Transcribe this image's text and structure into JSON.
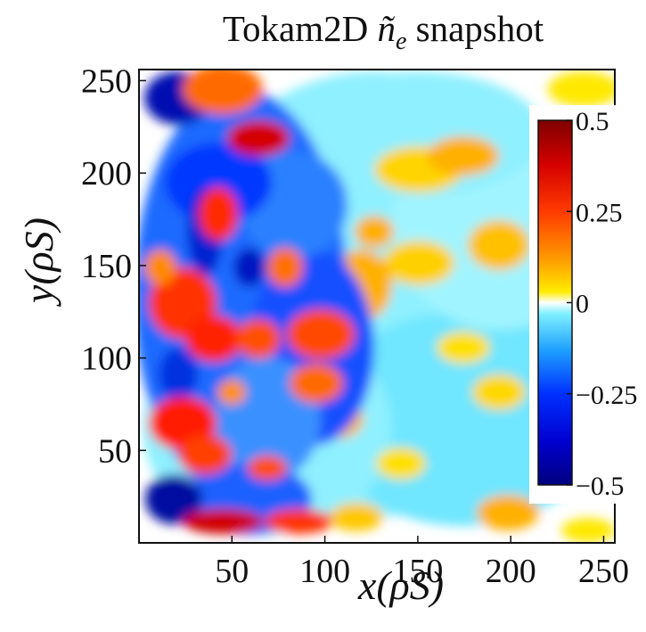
{
  "chart_data": {
    "type": "heatmap",
    "title": "Tokam2D ñe snapshot",
    "title_parts": {
      "prefix": "Tokam2D ",
      "symbol": "ñ",
      "subscript": "e",
      "suffix": " snapshot"
    },
    "xlabel": "x(ρS)",
    "ylabel": "y(ρS)",
    "xlim": [
      0,
      256
    ],
    "ylim": [
      0,
      256
    ],
    "x_ticks": [
      50,
      100,
      150,
      200,
      250
    ],
    "y_ticks": [
      50,
      100,
      150,
      200,
      250
    ],
    "colorbar": {
      "range": [
        -0.5,
        0.5
      ],
      "ticks": [
        0.5,
        0.25,
        0,
        -0.25,
        -0.5
      ],
      "tick_labels": [
        "0.5",
        "0.25",
        "0",
        "−0.25",
        "−0.5"
      ],
      "colormap": "jet-like (dark blue → blue → cyan → white → yellow → orange → red → dark red)"
    },
    "grid": false,
    "field_description": "Turbulent electron density fluctuation field; strongest positive (red) and negative (blue) structures near x ≈ 0–100, weaker cyan/yellow blobs toward larger x."
  },
  "colors": {
    "dark_blue": "#00008f",
    "blue": "#0028ff",
    "cyan": "#55e3ff",
    "white": "#ffffff",
    "yellow": "#ffe800",
    "orange": "#ff8a00",
    "red": "#ff1a00",
    "dark_red": "#7f0000"
  }
}
